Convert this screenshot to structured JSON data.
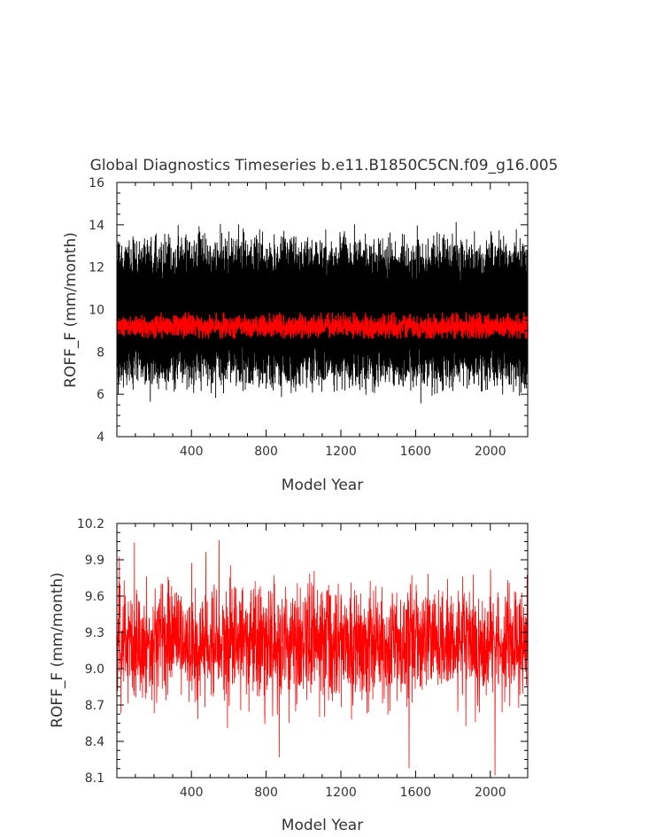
{
  "figure": {
    "title": "Global Diagnostics Timeseries b.e11.B1850C5CN.f09_g16.005"
  },
  "chart_data": [
    {
      "type": "line",
      "xlabel": "Model Year",
      "ylabel": "ROFF_F (mm/month)",
      "xlim": [
        1,
        2200
      ],
      "ylim": [
        4,
        16
      ],
      "x_ticks": [
        400,
        800,
        1200,
        1600,
        2000
      ],
      "y_ticks": [
        4,
        6,
        8,
        10,
        12,
        14,
        16
      ],
      "y_tick_labels": [
        "4",
        "6",
        "8",
        "10",
        "12",
        "14",
        "16"
      ],
      "grid": false,
      "series": [
        {
          "kind": "monthly",
          "color": "#000000",
          "mean": 9.2,
          "band": [
            6.5,
            13.2
          ],
          "extremes": {
            "min": 6.0,
            "max": 14.2
          }
        },
        {
          "kind": "annual",
          "color": "#ff0000",
          "mean": 9.2,
          "band": [
            8.6,
            9.9
          ]
        }
      ]
    },
    {
      "type": "line",
      "xlabel": "Model Year",
      "ylabel": "ROFF_F (mm/month)",
      "xlim": [
        1,
        2200
      ],
      "ylim": [
        8.1,
        10.2
      ],
      "x_ticks": [
        400,
        800,
        1200,
        1600,
        2000
      ],
      "y_ticks": [
        8.1,
        8.4,
        8.7,
        9.0,
        9.3,
        9.6,
        9.9,
        10.2
      ],
      "y_tick_labels": [
        "8.1",
        "8.4",
        "8.7",
        "9.0",
        "9.3",
        "9.6",
        "9.9",
        "10.2"
      ],
      "grid": false,
      "series": [
        {
          "kind": "annual",
          "color": "#ff0000",
          "mean": 9.22,
          "range": [
            8.12,
            10.06
          ],
          "annotated_points": [
            {
              "year": 95,
              "value": 10.04
            },
            {
              "year": 548,
              "value": 10.06
            },
            {
              "year": 870,
              "value": 8.27
            },
            {
              "year": 1565,
              "value": 8.18
            },
            {
              "year": 2025,
              "value": 8.12
            }
          ]
        }
      ]
    }
  ]
}
